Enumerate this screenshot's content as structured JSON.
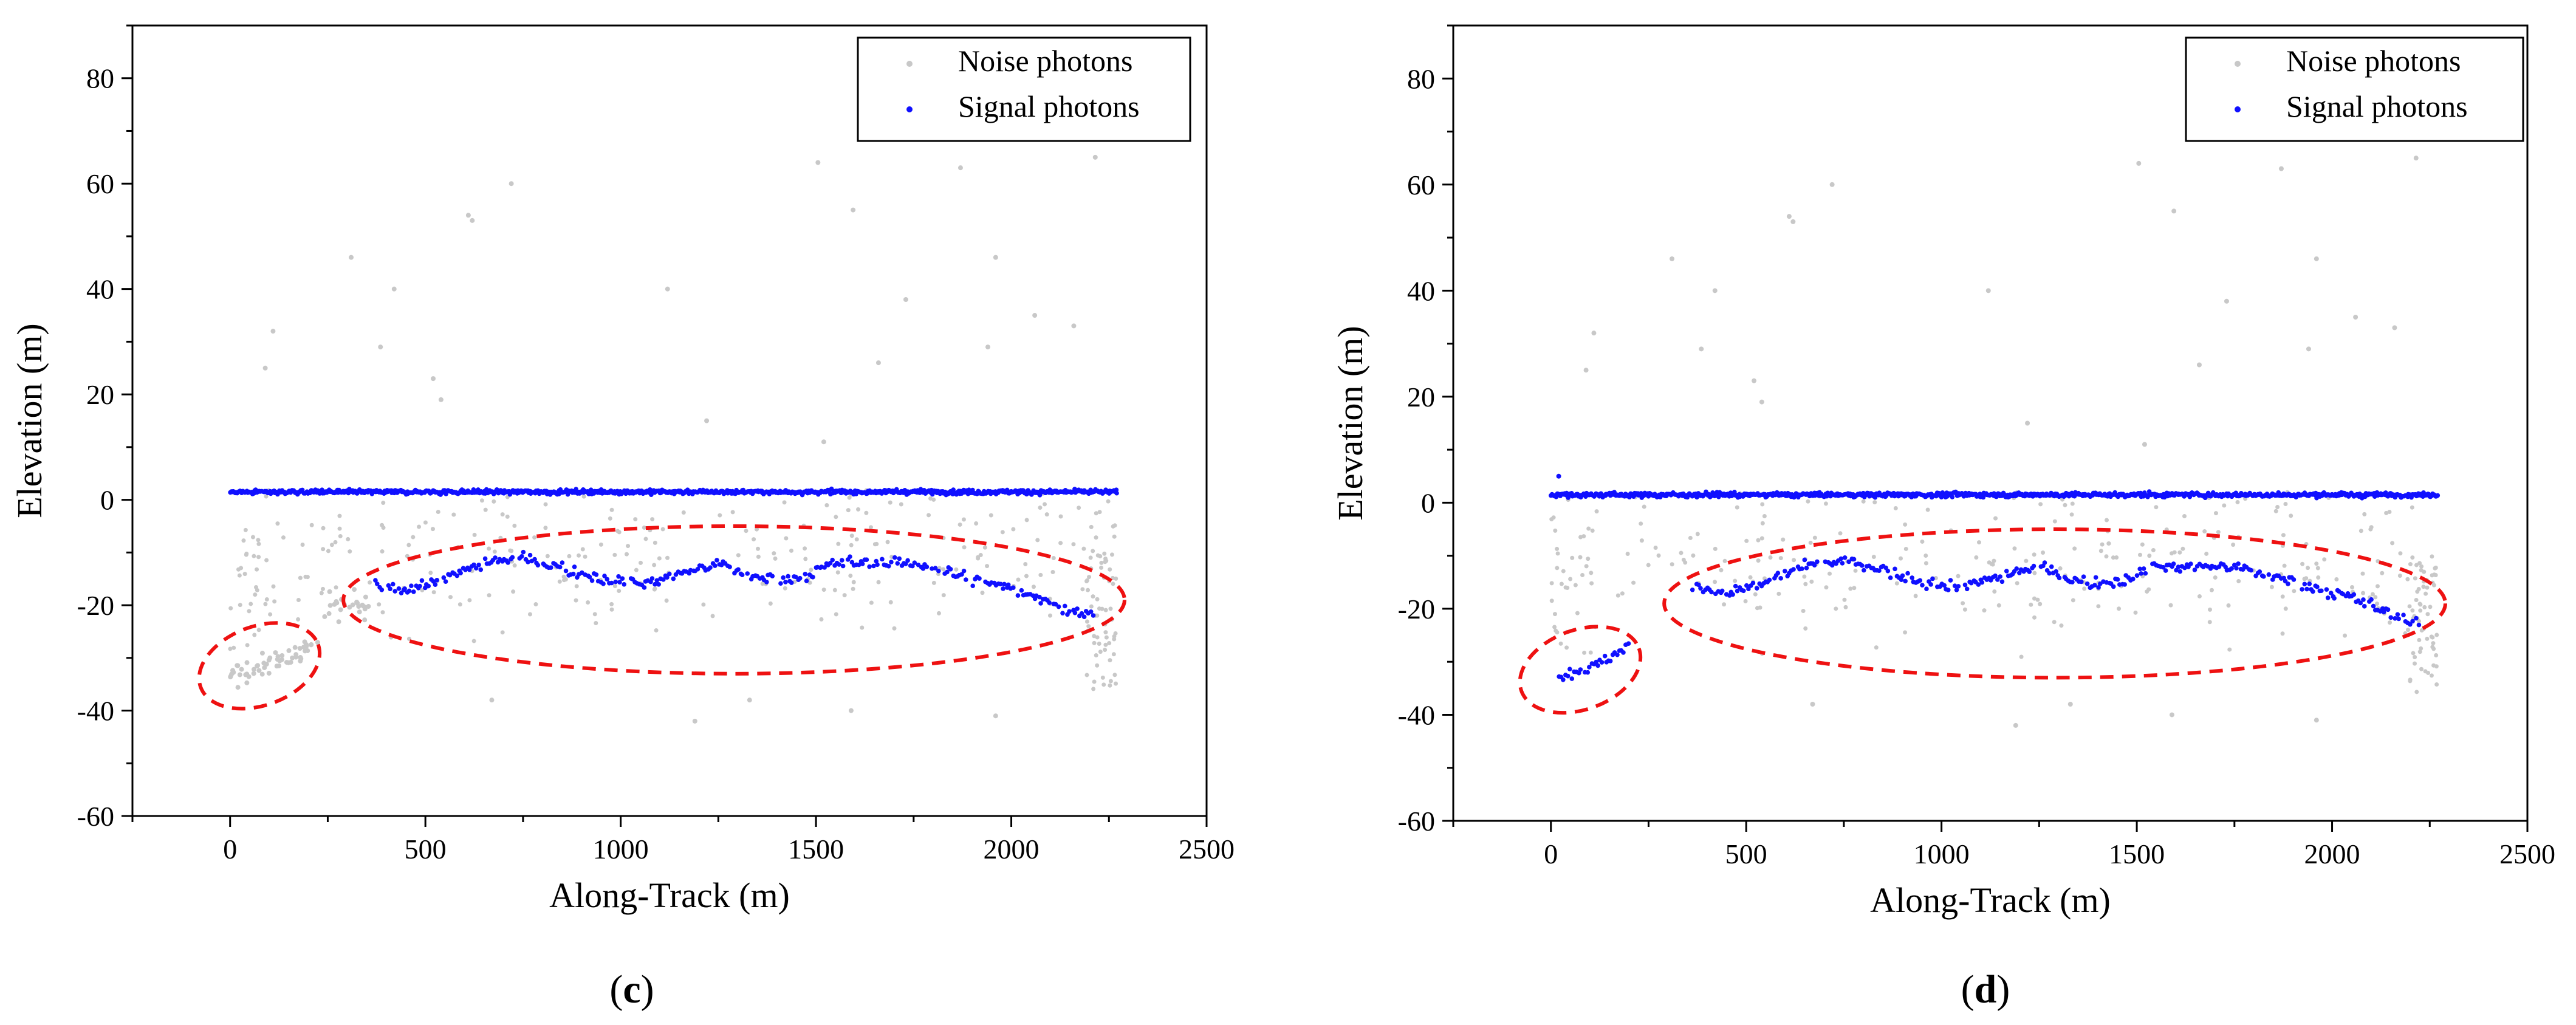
{
  "figure": {
    "panels": [
      {
        "id": "c",
        "label_prefix": "(",
        "label_letter": "c",
        "label_suffix": ")"
      },
      {
        "id": "d",
        "label_prefix": "(",
        "label_letter": "d",
        "label_suffix": ")"
      }
    ]
  },
  "chart_data": [
    {
      "type": "scatter",
      "panel": "c",
      "xlabel": "Along-Track (m)",
      "ylabel": "Elevation (m)",
      "xlim": [
        -250,
        2500
      ],
      "ylim": [
        -60,
        90
      ],
      "xticks": [
        0,
        500,
        1000,
        1500,
        2000,
        2500
      ],
      "yticks": [
        -60,
        -40,
        -20,
        0,
        20,
        40,
        60,
        80
      ],
      "legend": {
        "position": "top-right",
        "entries": [
          "Noise photons",
          "Signal photons"
        ]
      },
      "colors": {
        "noise": "#c8c8c8",
        "signal": "#1010ff",
        "annotation": "#ee1111"
      },
      "series": [
        {
          "name": "Noise photons",
          "description": "scattered background photons",
          "x_range": [
            0,
            2270
          ],
          "y_range": [
            -42,
            65
          ],
          "sample_points": [
            [
              310,
              46
            ],
            [
              420,
              40
            ],
            [
              540,
              19
            ],
            [
              610,
              54
            ],
            [
              620,
              53
            ],
            [
              720,
              60
            ],
            [
              110,
              32
            ],
            [
              90,
              25
            ],
            [
              385,
              29
            ],
            [
              520,
              23
            ],
            [
              1120,
              40
            ],
            [
              1220,
              15
            ],
            [
              1505,
              64
            ],
            [
              1520,
              11
            ],
            [
              1595,
              55
            ],
            [
              1660,
              26
            ],
            [
              1730,
              38
            ],
            [
              1870,
              63
            ],
            [
              1940,
              29
            ],
            [
              1960,
              46
            ],
            [
              2060,
              35
            ],
            [
              2160,
              33
            ],
            [
              2215,
              65
            ],
            [
              670,
              -38
            ],
            [
              1190,
              -42
            ],
            [
              1590,
              -40
            ],
            [
              1960,
              -41
            ],
            [
              1330,
              -38
            ]
          ]
        },
        {
          "name": "Signal photons",
          "segments": [
            {
              "description": "surface signal",
              "x_range": [
                0,
                2270
              ],
              "y": 1.5
            },
            {
              "description": "bottom signal",
              "points": [
                [
                  370,
                  -16
                ],
                [
                  450,
                  -17
                ],
                [
                  550,
                  -15
                ],
                [
                  650,
                  -12
                ],
                [
                  750,
                  -11
                ],
                [
                  850,
                  -13
                ],
                [
                  950,
                  -15
                ],
                [
                  1050,
                  -16
                ],
                [
                  1150,
                  -14
                ],
                [
                  1250,
                  -12
                ],
                [
                  1350,
                  -15
                ],
                [
                  1450,
                  -15
                ],
                [
                  1550,
                  -12
                ],
                [
                  1650,
                  -12
                ],
                [
                  1750,
                  -12
                ],
                [
                  1850,
                  -14
                ],
                [
                  1950,
                  -16
                ],
                [
                  2050,
                  -18
                ],
                [
                  2150,
                  -21
                ],
                [
                  2210,
                  -22
                ]
              ]
            }
          ]
        }
      ],
      "annotations": [
        {
          "type": "dashed-ellipse",
          "center": [
            75,
            -31.5
          ],
          "radii": [
            160,
            7.5
          ],
          "rotation": 20
        },
        {
          "type": "dashed-ellipse",
          "center": [
            1290,
            -19
          ],
          "radii": [
            1000,
            14
          ],
          "rotation": 0
        }
      ]
    },
    {
      "type": "scatter",
      "panel": "d",
      "xlabel": "Along-Track (m)",
      "ylabel": "Elevation (m)",
      "xlim": [
        -250,
        2500
      ],
      "ylim": [
        -60,
        90
      ],
      "xticks": [
        0,
        500,
        1000,
        1500,
        2000,
        2500
      ],
      "yticks": [
        -60,
        -40,
        -20,
        0,
        20,
        40,
        60,
        80
      ],
      "legend": {
        "position": "top-right",
        "entries": [
          "Noise photons",
          "Signal photons"
        ]
      },
      "colors": {
        "noise": "#c8c8c8",
        "signal": "#1010ff",
        "annotation": "#ee1111"
      },
      "series": [
        {
          "name": "Noise photons",
          "description": "scattered background photons",
          "x_range": [
            0,
            2270
          ],
          "y_range": [
            -42,
            65
          ],
          "sample_points": [
            [
              310,
              46
            ],
            [
              420,
              40
            ],
            [
              540,
              19
            ],
            [
              610,
              54
            ],
            [
              620,
              53
            ],
            [
              720,
              60
            ],
            [
              110,
              32
            ],
            [
              90,
              25
            ],
            [
              385,
              29
            ],
            [
              520,
              23
            ],
            [
              1120,
              40
            ],
            [
              1220,
              15
            ],
            [
              1505,
              64
            ],
            [
              1520,
              11
            ],
            [
              1595,
              55
            ],
            [
              1660,
              26
            ],
            [
              1730,
              38
            ],
            [
              1870,
              63
            ],
            [
              1940,
              29
            ],
            [
              1960,
              46
            ],
            [
              2060,
              35
            ],
            [
              2160,
              33
            ],
            [
              2215,
              65
            ],
            [
              670,
              -38
            ],
            [
              1190,
              -42
            ],
            [
              1590,
              -40
            ],
            [
              1960,
              -41
            ],
            [
              1330,
              -38
            ]
          ]
        },
        {
          "name": "Signal photons",
          "segments": [
            {
              "description": "surface signal",
              "x_range": [
                0,
                2270
              ],
              "y": 1.5
            },
            {
              "description": "bottom signal",
              "points": [
                [
                  20,
                  -33
                ],
                [
                  100,
                  -31
                ],
                [
                  180,
                  -28
                ],
                [
                  370,
                  -16
                ],
                [
                  450,
                  -17
                ],
                [
                  550,
                  -15
                ],
                [
                  650,
                  -12
                ],
                [
                  750,
                  -11
                ],
                [
                  850,
                  -13
                ],
                [
                  950,
                  -15
                ],
                [
                  1050,
                  -16
                ],
                [
                  1150,
                  -14
                ],
                [
                  1250,
                  -12
                ],
                [
                  1350,
                  -15
                ],
                [
                  1450,
                  -15
                ],
                [
                  1550,
                  -12
                ],
                [
                  1650,
                  -12
                ],
                [
                  1750,
                  -12
                ],
                [
                  1850,
                  -14
                ],
                [
                  1950,
                  -16
                ],
                [
                  2050,
                  -18
                ],
                [
                  2150,
                  -21
                ],
                [
                  2220,
                  -23
                ]
              ]
            }
          ]
        }
      ],
      "annotations": [
        {
          "type": "dashed-ellipse",
          "center": [
            75,
            -31.5
          ],
          "radii": [
            160,
            7.5
          ],
          "rotation": 20
        },
        {
          "type": "dashed-ellipse",
          "center": [
            1290,
            -19
          ],
          "radii": [
            1000,
            14
          ],
          "rotation": 0
        }
      ]
    }
  ]
}
